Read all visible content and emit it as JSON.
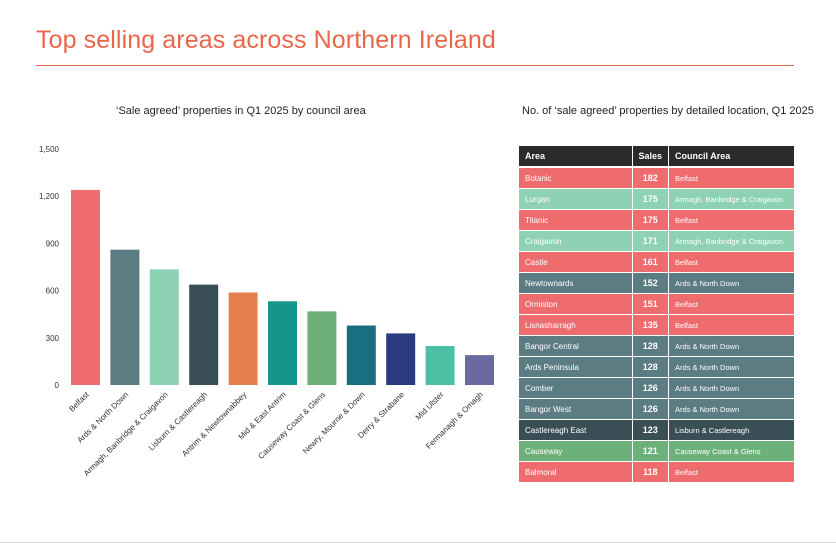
{
  "page": {
    "title": "Top selling areas across Northern Ireland",
    "chart_subtitle": "‘Sale agreed’ properties in Q1 2025 by council area",
    "table_subtitle": "No. of ‘sale agreed’ properties by detailed location, Q1 2025"
  },
  "chart_data": [
    {
      "type": "bar",
      "title": "‘Sale agreed’ properties in Q1 2025 by council area",
      "categories": [
        "Belfast",
        "Ards & North Down",
        "Armagh, Banbridge & Craigavon",
        "Lisburn & Castlereagh",
        "Antrim & Newtownabbey",
        "Mid & East Antrim",
        "Causeway Coast & Glens",
        "Newry, Mourne & Down",
        "Derry & Strabane",
        "Mid Ulster",
        "Fermanagh & Omagh"
      ],
      "values": [
        1240,
        860,
        735,
        638,
        588,
        532,
        468,
        378,
        328,
        248,
        190
      ],
      "colors": [
        "#ee6b6e",
        "#5b7c82",
        "#8ed1b5",
        "#3a4f55",
        "#e47e4e",
        "#15968d",
        "#6db07a",
        "#1a6e82",
        "#293b7d",
        "#4bc0a4",
        "#6a6aa1"
      ],
      "ylim": [
        0,
        1500
      ],
      "yticks": [
        "0",
        "300",
        "600",
        "900",
        "1,200",
        "1,500"
      ],
      "ytick_values": [
        0,
        300,
        600,
        900,
        1200,
        1500
      ],
      "xlabel": "",
      "ylabel": "",
      "grid": false,
      "legend": "none"
    },
    {
      "type": "table",
      "title": "No. of ‘sale agreed’ properties by detailed location, Q1 2025",
      "columns": [
        "Area",
        "Sales",
        "Council Area"
      ],
      "rows": [
        {
          "area": "Botanic",
          "sales": 182,
          "council": "Belfast",
          "color": "#ee6b6e"
        },
        {
          "area": "Lurgan",
          "sales": 175,
          "council": "Armagh, Banbridge & Craigavon",
          "color": "#8ed1b5"
        },
        {
          "area": "Titanic",
          "sales": 175,
          "council": "Belfast",
          "color": "#ee6b6e"
        },
        {
          "area": "Craigavon",
          "sales": 171,
          "council": "Armagh, Banbridge & Craigavon",
          "color": "#8ed1b5"
        },
        {
          "area": "Castle",
          "sales": 161,
          "council": "Belfast",
          "color": "#ee6b6e"
        },
        {
          "area": "Newtownards",
          "sales": 152,
          "council": "Ards & North Down",
          "color": "#5b7c82"
        },
        {
          "area": "Ormiston",
          "sales": 151,
          "council": "Belfast",
          "color": "#ee6b6e"
        },
        {
          "area": "Lisnasharragh",
          "sales": 135,
          "council": "Belfast",
          "color": "#ee6b6e"
        },
        {
          "area": "Bangor Central",
          "sales": 128,
          "council": "Ards & North Down",
          "color": "#5b7c82"
        },
        {
          "area": "Ards Peninsula",
          "sales": 128,
          "council": "Ards & North Down",
          "color": "#5b7c82"
        },
        {
          "area": "Comber",
          "sales": 126,
          "council": "Ards & North Down",
          "color": "#5b7c82"
        },
        {
          "area": "Bangor West",
          "sales": 126,
          "council": "Ards & North Down",
          "color": "#5b7c82"
        },
        {
          "area": "Castlereagh East",
          "sales": 123,
          "council": "Lisburn & Castlereagh",
          "color": "#3a4f55"
        },
        {
          "area": "Causeway",
          "sales": 121,
          "council": "Causeway Coast & Glens",
          "color": "#6db07a"
        },
        {
          "area": "Balmoral",
          "sales": 118,
          "council": "Belfast",
          "color": "#ee6b6e"
        }
      ]
    }
  ]
}
